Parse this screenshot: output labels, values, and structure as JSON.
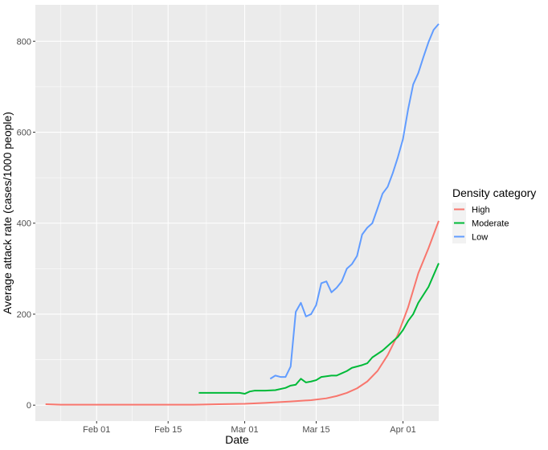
{
  "chart_data": {
    "type": "line",
    "xlabel": "Date",
    "ylabel": "Average attack rate (cases/1000 people)",
    "x_scale": "date",
    "xlim": [
      "2020-01-20",
      "2020-04-08"
    ],
    "ylim": [
      -35,
      880
    ],
    "x_ticks": [
      {
        "date": "2020-02-01",
        "label": "Feb 01"
      },
      {
        "date": "2020-02-15",
        "label": "Feb 15"
      },
      {
        "date": "2020-03-01",
        "label": "Mar 01"
      },
      {
        "date": "2020-03-15",
        "label": "Mar 15"
      },
      {
        "date": "2020-04-01",
        "label": "Apr 01"
      }
    ],
    "y_ticks": [
      0,
      200,
      400,
      600,
      800
    ],
    "grid": true,
    "legend": {
      "title": "Density category",
      "position": "right"
    },
    "series": [
      {
        "name": "High",
        "color": "#F8766D",
        "points": [
          [
            "2020-01-22",
            2
          ],
          [
            "2020-01-25",
            1
          ],
          [
            "2020-02-01",
            1
          ],
          [
            "2020-02-10",
            1
          ],
          [
            "2020-02-20",
            1
          ],
          [
            "2020-02-25",
            2
          ],
          [
            "2020-03-01",
            3
          ],
          [
            "2020-03-05",
            5
          ],
          [
            "2020-03-10",
            8
          ],
          [
            "2020-03-14",
            11
          ],
          [
            "2020-03-17",
            15
          ],
          [
            "2020-03-19",
            20
          ],
          [
            "2020-03-21",
            27
          ],
          [
            "2020-03-23",
            37
          ],
          [
            "2020-03-25",
            52
          ],
          [
            "2020-03-27",
            75
          ],
          [
            "2020-03-29",
            110
          ],
          [
            "2020-03-31",
            155
          ],
          [
            "2020-04-02",
            215
          ],
          [
            "2020-04-04",
            290
          ],
          [
            "2020-04-06",
            345
          ],
          [
            "2020-04-07",
            375
          ],
          [
            "2020-04-08",
            405
          ]
        ]
      },
      {
        "name": "Moderate",
        "color": "#00BA38",
        "points": [
          [
            "2020-02-21",
            27
          ],
          [
            "2020-02-25",
            27
          ],
          [
            "2020-02-29",
            27
          ],
          [
            "2020-03-01",
            25
          ],
          [
            "2020-03-02",
            30
          ],
          [
            "2020-03-03",
            32
          ],
          [
            "2020-03-05",
            32
          ],
          [
            "2020-03-07",
            33
          ],
          [
            "2020-03-09",
            38
          ],
          [
            "2020-03-10",
            43
          ],
          [
            "2020-03-11",
            45
          ],
          [
            "2020-03-12",
            58
          ],
          [
            "2020-03-13",
            50
          ],
          [
            "2020-03-14",
            52
          ],
          [
            "2020-03-15",
            55
          ],
          [
            "2020-03-16",
            62
          ],
          [
            "2020-03-18",
            65
          ],
          [
            "2020-03-19",
            65
          ],
          [
            "2020-03-20",
            70
          ],
          [
            "2020-03-21",
            75
          ],
          [
            "2020-03-22",
            82
          ],
          [
            "2020-03-24",
            88
          ],
          [
            "2020-03-25",
            92
          ],
          [
            "2020-03-26",
            105
          ],
          [
            "2020-03-28",
            120
          ],
          [
            "2020-03-30",
            140
          ],
          [
            "2020-03-31",
            150
          ],
          [
            "2020-04-01",
            165
          ],
          [
            "2020-04-02",
            185
          ],
          [
            "2020-04-03",
            200
          ],
          [
            "2020-04-04",
            225
          ],
          [
            "2020-04-06",
            260
          ],
          [
            "2020-04-08",
            312
          ]
        ]
      },
      {
        "name": "Low",
        "color": "#619CFF",
        "points": [
          [
            "2020-03-06",
            58
          ],
          [
            "2020-03-07",
            65
          ],
          [
            "2020-03-08",
            62
          ],
          [
            "2020-03-09",
            62
          ],
          [
            "2020-03-10",
            85
          ],
          [
            "2020-03-11",
            205
          ],
          [
            "2020-03-12",
            225
          ],
          [
            "2020-03-13",
            195
          ],
          [
            "2020-03-14",
            200
          ],
          [
            "2020-03-15",
            220
          ],
          [
            "2020-03-16",
            268
          ],
          [
            "2020-03-17",
            272
          ],
          [
            "2020-03-18",
            248
          ],
          [
            "2020-03-19",
            258
          ],
          [
            "2020-03-20",
            272
          ],
          [
            "2020-03-21",
            300
          ],
          [
            "2020-03-22",
            310
          ],
          [
            "2020-03-23",
            328
          ],
          [
            "2020-03-24",
            375
          ],
          [
            "2020-03-25",
            390
          ],
          [
            "2020-03-26",
            400
          ],
          [
            "2020-03-27",
            432
          ],
          [
            "2020-03-28",
            465
          ],
          [
            "2020-03-29",
            480
          ],
          [
            "2020-03-30",
            510
          ],
          [
            "2020-03-31",
            545
          ],
          [
            "2020-04-01",
            585
          ],
          [
            "2020-04-02",
            650
          ],
          [
            "2020-04-03",
            705
          ],
          [
            "2020-04-04",
            730
          ],
          [
            "2020-04-05",
            765
          ],
          [
            "2020-04-06",
            798
          ],
          [
            "2020-04-07",
            825
          ],
          [
            "2020-04-08",
            838
          ]
        ]
      }
    ]
  }
}
